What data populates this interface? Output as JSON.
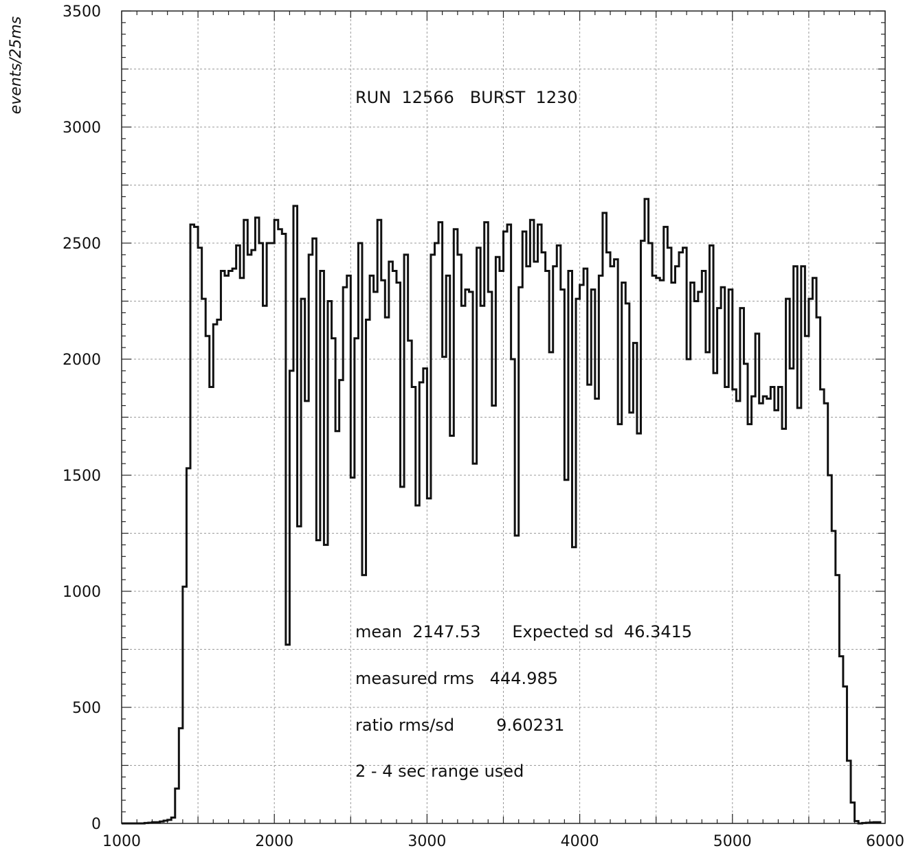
{
  "chart_data": {
    "type": "histogram",
    "title": "",
    "xlabel": "",
    "ylabel": "events/25ms",
    "xlim": [
      1000,
      6000
    ],
    "ylim": [
      0,
      3500
    ],
    "x_ticks": [
      1000,
      2000,
      3000,
      4000,
      5000,
      6000
    ],
    "y_ticks": [
      0,
      500,
      1000,
      1500,
      2000,
      2500,
      3000,
      3500
    ],
    "grid": true,
    "bin_width": 25,
    "annotations": {
      "run_burst": "RUN  12566   BURST  1230",
      "mean": "mean  2147.53      Expected sd  46.3415",
      "rms": "measured rms   444.985",
      "ratio": "ratio rms/sd        9.60231",
      "range": "2 - 4 sec range used"
    },
    "series": [
      {
        "x": [
          1000,
          1025,
          1050,
          1075,
          1100,
          1125,
          1150,
          1175,
          1200,
          1225,
          1250,
          1275,
          1300,
          1325,
          1350,
          1375,
          1400,
          1425,
          1450,
          1475,
          1500,
          1525,
          1550,
          1575,
          1600,
          1625,
          1650,
          1675,
          1700,
          1725,
          1750,
          1775,
          1800,
          1825,
          1850,
          1875,
          1900,
          1925,
          1950,
          1975,
          2000,
          2025,
          2050,
          2075,
          2100,
          2125,
          2150,
          2175,
          2200,
          2225,
          2250,
          2275,
          2300,
          2325,
          2350,
          2375,
          2400,
          2425,
          2450,
          2475,
          2500,
          2525,
          2550,
          2575,
          2600,
          2625,
          2650,
          2675,
          2700,
          2725,
          2750,
          2775,
          2800,
          2825,
          2850,
          2875,
          2900,
          2925,
          2950,
          2975,
          3000,
          3025,
          3050,
          3075,
          3100,
          3125,
          3150,
          3175,
          3200,
          3225,
          3250,
          3275,
          3300,
          3325,
          3350,
          3375,
          3400,
          3425,
          3450,
          3475,
          3500,
          3525,
          3550,
          3575,
          3600,
          3625,
          3650,
          3675,
          3700,
          3725,
          3750,
          3775,
          3800,
          3825,
          3850,
          3875,
          3900,
          3925,
          3950,
          3975,
          4000,
          4025,
          4050,
          4075,
          4100,
          4125,
          4150,
          4175,
          4200,
          4225,
          4250,
          4275,
          4300,
          4325,
          4350,
          4375,
          4400,
          4425,
          4450,
          4475,
          4500,
          4525,
          4550,
          4575,
          4600,
          4625,
          4650,
          4675,
          4700,
          4725,
          4750,
          4775,
          4800,
          4825,
          4850,
          4875,
          4900,
          4925,
          4950,
          4975,
          5000,
          5025,
          5050,
          5075,
          5100,
          5125,
          5150,
          5175,
          5200,
          5225,
          5250,
          5275,
          5300,
          5325,
          5350,
          5375,
          5400,
          5425,
          5450,
          5475,
          5500,
          5525,
          5550,
          5575,
          5600,
          5625,
          5650,
          5675,
          5700,
          5725,
          5750,
          5775,
          5800,
          5825,
          5850,
          5875,
          5900,
          5925,
          5950,
          5975
        ],
        "values": [
          0,
          0,
          0,
          0,
          0,
          0,
          2,
          3,
          5,
          5,
          8,
          12,
          15,
          25,
          150,
          410,
          1020,
          1530,
          2580,
          2570,
          2480,
          2260,
          2100,
          1880,
          2150,
          2170,
          2380,
          2360,
          2380,
          2390,
          2490,
          2350,
          2600,
          2450,
          2470,
          2610,
          2500,
          2230,
          2500,
          2500,
          2600,
          2560,
          2540,
          770,
          1950,
          2660,
          1280,
          2260,
          1820,
          2450,
          2520,
          1220,
          2380,
          1200,
          2250,
          2090,
          1690,
          1910,
          2310,
          2360,
          1490,
          2090,
          2500,
          1070,
          2170,
          2360,
          2290,
          2600,
          2340,
          2180,
          2420,
          2380,
          2330,
          1450,
          2450,
          2080,
          1880,
          1370,
          1900,
          1960,
          1400,
          2450,
          2500,
          2590,
          2010,
          2360,
          1670,
          2560,
          2450,
          2230,
          2300,
          2290,
          1550,
          2480,
          2230,
          2590,
          2290,
          1800,
          2440,
          2380,
          2550,
          2580,
          2000,
          1240,
          2310,
          2550,
          2400,
          2600,
          2420,
          2580,
          2460,
          2380,
          2030,
          2400,
          2490,
          2300,
          1480,
          2380,
          1190,
          2260,
          2320,
          2390,
          1890,
          2300,
          1830,
          2360,
          2630,
          2460,
          2400,
          2430,
          1720,
          2330,
          2240,
          1770,
          2070,
          1680,
          2510,
          2690,
          2500,
          2360,
          2350,
          2340,
          2570,
          2480,
          2330,
          2400,
          2460,
          2480,
          2000,
          2330,
          2250,
          2290,
          2380,
          2030,
          2490,
          1940,
          2220,
          2310,
          1880,
          2300,
          1870,
          1820,
          2220,
          1980,
          1720,
          1840,
          2110,
          1810,
          1840,
          1830,
          1880,
          1780,
          1880,
          1700,
          2260,
          1960,
          2400,
          1790,
          2400,
          2100,
          2260,
          2350,
          2180,
          1870,
          1810,
          1500,
          1260,
          1070,
          720,
          590,
          270,
          90,
          10,
          0,
          2,
          3,
          4,
          5,
          5
        ]
      }
    ]
  }
}
